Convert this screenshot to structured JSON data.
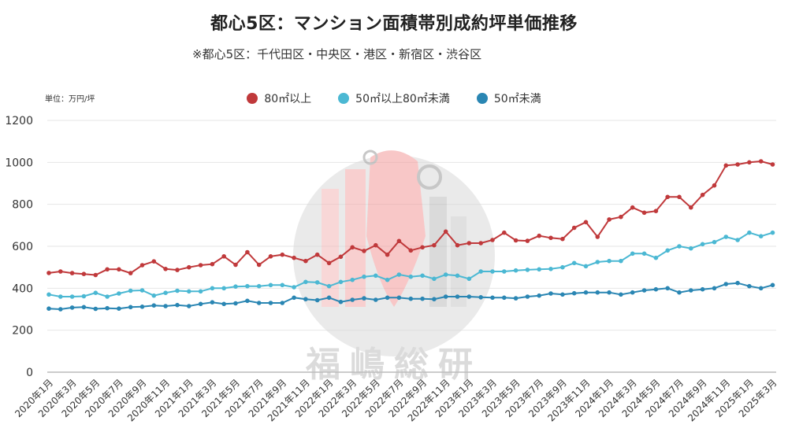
{
  "title": "都心5区：マンション面積帯別成約坪単価推移",
  "subtitle": "※都心5区：千代田区・中央区・港区・新宿区・渋谷区",
  "unit_label": "単位：万円/坪",
  "watermark_text": "福嶋総研",
  "colors": {
    "s1": "#c0393b",
    "s2": "#4bb8d3",
    "s3": "#2a86b3",
    "grid": "#e6e6e6",
    "axis": "#555555"
  },
  "chart_data": {
    "type": "line",
    "title": "都心5区：マンション面積帯別成約坪単価推移",
    "ylabel": "単位：万円/坪",
    "ylim": [
      0,
      1200
    ],
    "yticks": [
      0,
      200,
      400,
      600,
      800,
      1000,
      1200
    ],
    "grid": true,
    "legend_position": "top-center",
    "x": [
      "2020年1月",
      "2020年2月",
      "2020年3月",
      "2020年4月",
      "2020年5月",
      "2020年6月",
      "2020年7月",
      "2020年8月",
      "2020年9月",
      "2020年10月",
      "2020年11月",
      "2020年12月",
      "2021年1月",
      "2021年2月",
      "2021年3月",
      "2021年4月",
      "2021年5月",
      "2021年6月",
      "2021年7月",
      "2021年8月",
      "2021年9月",
      "2021年10月",
      "2021年11月",
      "2021年12月",
      "2022年1月",
      "2022年2月",
      "2022年3月",
      "2022年4月",
      "2022年5月",
      "2022年6月",
      "2022年7月",
      "2022年8月",
      "2022年9月",
      "2022年10月",
      "2022年11月",
      "2022年12月",
      "2023年1月",
      "2023年2月",
      "2023年3月",
      "2023年4月",
      "2023年5月",
      "2023年6月",
      "2023年7月",
      "2023年8月",
      "2023年9月",
      "2023年10月",
      "2023年11月",
      "2023年12月",
      "2024年1月",
      "2024年2月",
      "2024年3月",
      "2024年4月",
      "2024年5月",
      "2024年6月",
      "2024年7月",
      "2024年8月",
      "2024年9月",
      "2024年10月",
      "2024年11月",
      "2024年12月",
      "2025年1月",
      "2025年2月",
      "2025年3月"
    ],
    "xtick_labels": [
      "2020年1月",
      "2020年3月",
      "2020年5月",
      "2020年7月",
      "2020年9月",
      "2020年11月",
      "2021年1月",
      "2021年3月",
      "2021年5月",
      "2021年7月",
      "2021年9月",
      "2021年11月",
      "2022年1月",
      "2022年3月",
      "2022年5月",
      "2022年7月",
      "2022年9月",
      "2022年11月",
      "2023年1月",
      "2023年3月",
      "2023年5月",
      "2023年7月",
      "2023年9月",
      "2023年11月",
      "2024年1月",
      "2024年3月",
      "2024年5月",
      "2024年7月",
      "2024年9月",
      "2024年11月",
      "2025年1月",
      "2025年3月"
    ],
    "series": [
      {
        "name": "80㎡以上",
        "color": "#c0393b",
        "values": [
          473,
          480,
          472,
          468,
          463,
          490,
          490,
          472,
          510,
          528,
          492,
          487,
          500,
          510,
          515,
          552,
          512,
          572,
          512,
          552,
          560,
          545,
          530,
          560,
          520,
          550,
          595,
          578,
          605,
          560,
          625,
          580,
          595,
          605,
          670,
          605,
          615,
          615,
          630,
          665,
          628,
          626,
          650,
          640,
          635,
          688,
          715,
          645,
          728,
          740,
          785,
          760,
          768,
          835,
          835,
          785,
          845,
          890,
          985,
          990,
          1000,
          1005,
          990
        ]
      },
      {
        "name": "50㎡以上80㎡未満",
        "color": "#4bb8d3",
        "values": [
          370,
          360,
          360,
          362,
          378,
          360,
          375,
          388,
          390,
          365,
          378,
          388,
          385,
          385,
          400,
          400,
          408,
          410,
          410,
          415,
          415,
          405,
          430,
          428,
          410,
          430,
          440,
          455,
          460,
          440,
          465,
          455,
          460,
          445,
          465,
          460,
          445,
          480,
          480,
          480,
          485,
          488,
          490,
          492,
          500,
          520,
          505,
          525,
          530,
          530,
          565,
          565,
          545,
          580,
          600,
          590,
          610,
          620,
          645,
          630,
          665,
          648,
          665
        ]
      },
      {
        "name": "50㎡未満",
        "color": "#2a86b3",
        "values": [
          303,
          300,
          308,
          310,
          302,
          305,
          303,
          310,
          312,
          318,
          315,
          320,
          315,
          325,
          333,
          325,
          328,
          340,
          330,
          330,
          330,
          355,
          348,
          343,
          355,
          335,
          345,
          352,
          345,
          355,
          355,
          350,
          350,
          348,
          360,
          360,
          360,
          357,
          355,
          355,
          352,
          360,
          365,
          375,
          370,
          376,
          380,
          380,
          380,
          370,
          380,
          390,
          395,
          400,
          380,
          390,
          395,
          400,
          420,
          425,
          410,
          400,
          415
        ]
      }
    ]
  }
}
